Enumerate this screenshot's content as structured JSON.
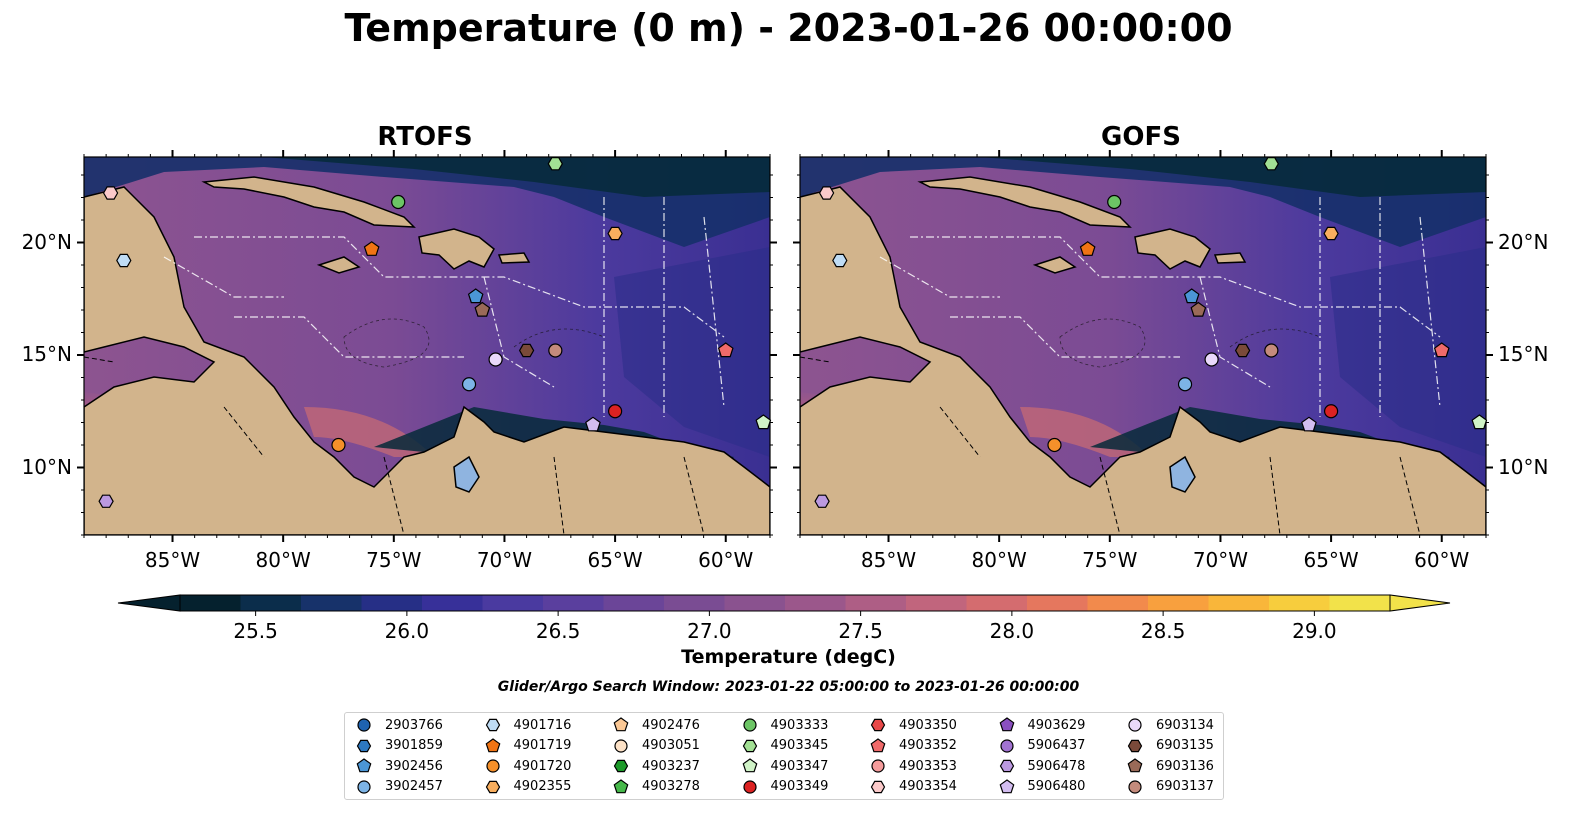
{
  "title": "Temperature (0 m) - 2023-01-26 00:00:00",
  "panels": [
    {
      "title": "RTOFS"
    },
    {
      "title": "GOFS"
    }
  ],
  "map": {
    "lon_range": [
      -89,
      -58
    ],
    "lat_range": [
      7,
      23.8
    ],
    "lon_ticks": [
      "85°W",
      "80°W",
      "75°W",
      "70°W",
      "65°W",
      "60°W"
    ],
    "lat_ticks": [
      "20°N",
      "15°N",
      "10°N"
    ],
    "colors": {
      "land": "#d2b48c",
      "lake": "#8fb4e0",
      "ocean_warm": "#9a5a8a",
      "ocean_mid": "#5c3d99",
      "ocean_cold": "#272b7c",
      "ocean_deep": "#062a3a",
      "hot": "#f6b440"
    }
  },
  "colorbar": {
    "label": "Temperature (degC)",
    "ticks": [
      "25.5",
      "26.0",
      "26.5",
      "27.0",
      "27.5",
      "28.0",
      "28.5",
      "29.0"
    ],
    "min": 25.25,
    "max": 29.25,
    "colors": [
      "#05212e",
      "#0b2d4b",
      "#17326a",
      "#262f86",
      "#373099",
      "#4a3aa0",
      "#5a3f9e",
      "#6b4598",
      "#7a4c93",
      "#8a528f",
      "#9b578b",
      "#ae5e85",
      "#c1657d",
      "#d46c6f",
      "#e5775e",
      "#f28a4c",
      "#f8a03e",
      "#f9b63a",
      "#f7cd3d",
      "#f2e24a"
    ]
  },
  "search_window": "Glider/Argo Search Window: 2023-01-22 05:00:00 to 2023-01-26 00:00:00",
  "floats": [
    {
      "id": "2903766",
      "shape": "circle",
      "color": "#1f63b0",
      "lon": null,
      "lat": null
    },
    {
      "id": "3901859",
      "shape": "hexagon",
      "color": "#2d78c0",
      "lon": null,
      "lat": null
    },
    {
      "id": "3902456",
      "shape": "pentagon",
      "color": "#4b96d6",
      "lon": -71.3,
      "lat": 17.6
    },
    {
      "id": "3902457",
      "shape": "circle",
      "color": "#7db4e6",
      "lon": -71.6,
      "lat": 13.7
    },
    {
      "id": "4901716",
      "shape": "hexagon",
      "color": "#bfdcf5",
      "lon": -87.2,
      "lat": 19.2
    },
    {
      "id": "4901719",
      "shape": "pentagon",
      "color": "#f07414",
      "lon": -76.0,
      "lat": 19.7
    },
    {
      "id": "4901720",
      "shape": "circle",
      "color": "#f5902a",
      "lon": -77.5,
      "lat": 11.0
    },
    {
      "id": "4902355",
      "shape": "hexagon",
      "color": "#f8ae5e",
      "lon": -65.0,
      "lat": 20.4
    },
    {
      "id": "4902476",
      "shape": "pentagon",
      "color": "#fbc895",
      "lon": null,
      "lat": null
    },
    {
      "id": "4903051",
      "shape": "circle",
      "color": "#fde2c7",
      "lon": null,
      "lat": null
    },
    {
      "id": "4903237",
      "shape": "hexagon",
      "color": "#1d9a2a",
      "lon": null,
      "lat": null
    },
    {
      "id": "4903278",
      "shape": "pentagon",
      "color": "#46b84a",
      "lon": null,
      "lat": null
    },
    {
      "id": "4903333",
      "shape": "circle",
      "color": "#6cc565",
      "lon": -74.8,
      "lat": 21.8
    },
    {
      "id": "4903345",
      "shape": "hexagon",
      "color": "#a2e094",
      "lon": -67.7,
      "lat": 23.5
    },
    {
      "id": "4903347",
      "shape": "pentagon",
      "color": "#d0f3c7",
      "lon": -58.3,
      "lat": 12.0
    },
    {
      "id": "4903349",
      "shape": "circle",
      "color": "#dc2222",
      "lon": -65.0,
      "lat": 12.5
    },
    {
      "id": "4903350",
      "shape": "hexagon",
      "color": "#e84848",
      "lon": null,
      "lat": null
    },
    {
      "id": "4903352",
      "shape": "pentagon",
      "color": "#f06a6a",
      "lon": -60.0,
      "lat": 15.2
    },
    {
      "id": "4903353",
      "shape": "circle",
      "color": "#f59c9c",
      "lon": null,
      "lat": null
    },
    {
      "id": "4903354",
      "shape": "hexagon",
      "color": "#fbcaca",
      "lon": -87.8,
      "lat": 22.2
    },
    {
      "id": "4903629",
      "shape": "pentagon",
      "color": "#8a4fc0",
      "lon": null,
      "lat": null
    },
    {
      "id": "5906437",
      "shape": "circle",
      "color": "#a273d2",
      "lon": null,
      "lat": null
    },
    {
      "id": "5906478",
      "shape": "hexagon",
      "color": "#bb99e0",
      "lon": -88.0,
      "lat": 8.5
    },
    {
      "id": "5906480",
      "shape": "pentagon",
      "color": "#d3bdf0",
      "lon": -66.0,
      "lat": 11.9
    },
    {
      "id": "6903134",
      "shape": "circle",
      "color": "#ead9fa",
      "lon": -70.4,
      "lat": 14.8
    },
    {
      "id": "6903135",
      "shape": "hexagon",
      "color": "#7a4a3a",
      "lon": -69.0,
      "lat": 15.2
    },
    {
      "id": "6903136",
      "shape": "pentagon",
      "color": "#9a6a58",
      "lon": -71.0,
      "lat": 17.0
    },
    {
      "id": "6903137",
      "shape": "circle",
      "color": "#c48b7c",
      "lon": -67.7,
      "lat": 15.2
    }
  ]
}
